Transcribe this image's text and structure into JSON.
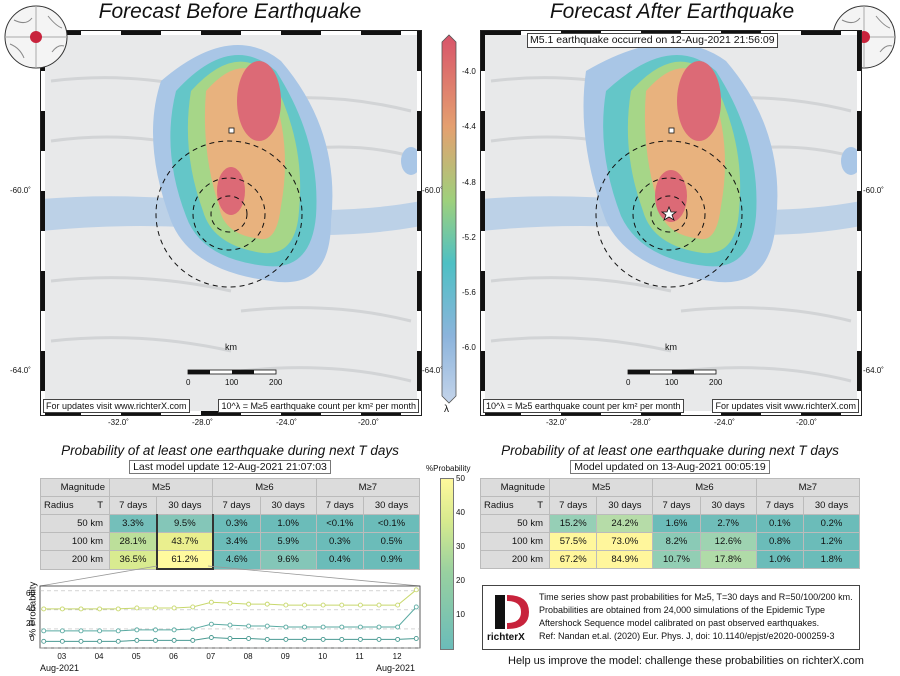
{
  "left_panel": {
    "title": "Forecast Before Earthquake",
    "footer_left": "For updates visit www.richterX.com",
    "footer_right": "10^λ = M≥5 earthquake count per km² per month",
    "scale_unit": "km",
    "scale_ticks": [
      "0",
      "100",
      "200"
    ],
    "lon_ticks": [
      "-32.0˚",
      "-28.0˚",
      "-24.0˚",
      "-20.0˚"
    ],
    "lat_ticks_right": [
      "-60.0˚",
      "-64.0˚"
    ],
    "lat_ticks_left": [
      "-60.0˚",
      "-64.0˚"
    ]
  },
  "right_panel": {
    "title": "Forecast After Earthquake",
    "event_label": "M5.1 earthquake occurred on 12-Aug-2021 21:56:09",
    "footer_left": "10^λ = M≥5 earthquake count per km² per month",
    "footer_right": "For updates visit www.richterX.com",
    "scale_unit": "km",
    "scale_ticks": [
      "0",
      "100",
      "200"
    ],
    "lon_ticks": [
      "-32.0˚",
      "-28.0˚",
      "-24.0˚",
      "-20.0˚"
    ],
    "lat_ticks_right": [
      "-60.0˚",
      "-64.0˚"
    ]
  },
  "colorbar": {
    "ticks": [
      "-4.0",
      "-4.4",
      "-4.8",
      "-5.2",
      "-5.6",
      "-6.0"
    ],
    "symbol": "λ",
    "colors": [
      "#d8546a",
      "#e4a070",
      "#9ed07c",
      "#4ec0c4",
      "#8cb4dc"
    ]
  },
  "prob_colorbar": {
    "title": "%Probability",
    "ticks": [
      "50",
      "40",
      "30",
      "20",
      "10"
    ]
  },
  "table_left": {
    "title": "Probability of at least one earthquake during next T days",
    "update": "Last model update 12-Aug-2021 21:07:03",
    "header_magnitude": "Magnitude",
    "header_radius": "Radius",
    "header_t": "T",
    "magnitudes": [
      "M≥5",
      "M≥6",
      "M≥7"
    ],
    "periods": [
      "7 days",
      "30 days",
      "7 days",
      "30 days",
      "7 days",
      "30 days"
    ],
    "rows": [
      {
        "radius": "50 km",
        "cells": [
          "3.3%",
          "9.5%",
          "0.3%",
          "1.0%",
          "<0.1%",
          "<0.1%"
        ]
      },
      {
        "radius": "100 km",
        "cells": [
          "28.1%",
          "43.7%",
          "3.4%",
          "5.9%",
          "0.3%",
          "0.5%"
        ]
      },
      {
        "radius": "200 km",
        "cells": [
          "36.5%",
          "61.2%",
          "4.6%",
          "9.6%",
          "0.4%",
          "0.9%"
        ]
      }
    ],
    "colors": [
      [
        "#74bfba",
        "#84c6b8",
        "#6bbcb9",
        "#6bbcb9",
        "#6bbcb9",
        "#6bbcb9"
      ],
      [
        "#bcdf9a",
        "#eaef8e",
        "#6bbcb9",
        "#72bfba",
        "#6bbcb9",
        "#6bbcb9"
      ],
      [
        "#d9eb90",
        "#fffa9e",
        "#6fbdb9",
        "#84c6b8",
        "#6bbcb9",
        "#6bbcb9"
      ]
    ]
  },
  "table_right": {
    "title": "Probability of at least one earthquake during next T days",
    "update": "Model updated on 13-Aug-2021 00:05:19",
    "header_magnitude": "Magnitude",
    "header_radius": "Radius",
    "header_t": "T",
    "magnitudes": [
      "M≥5",
      "M≥6",
      "M≥7"
    ],
    "periods": [
      "7 days",
      "30 days",
      "7 days",
      "30 days",
      "7 days",
      "30 days"
    ],
    "rows": [
      {
        "radius": "50 km",
        "cells": [
          "15.2%",
          "24.2%",
          "1.6%",
          "2.7%",
          "0.1%",
          "0.2%"
        ]
      },
      {
        "radius": "100 km",
        "cells": [
          "57.5%",
          "73.0%",
          "8.2%",
          "12.6%",
          "0.8%",
          "1.2%"
        ]
      },
      {
        "radius": "200 km",
        "cells": [
          "67.2%",
          "84.9%",
          "10.7%",
          "17.8%",
          "1.0%",
          "1.8%"
        ]
      }
    ],
    "colors": [
      [
        "#96cfb6",
        "#b6dca8",
        "#6bbcb9",
        "#6fbdb9",
        "#6bbcb9",
        "#6bbcb9"
      ],
      [
        "#fff79c",
        "#fff69c",
        "#8acab6",
        "#9ed3b1",
        "#6bbcb9",
        "#6bbcb9"
      ],
      [
        "#fff69c",
        "#fff69c",
        "#92ceb4",
        "#b0dba8",
        "#6bbcb9",
        "#6bbcb9"
      ]
    ]
  },
  "timeseries": {
    "ylabel": "% Probability",
    "yticks": [
      "60",
      "40",
      "20",
      "0"
    ],
    "xticks": [
      "03",
      "04",
      "05",
      "06",
      "07",
      "08",
      "09",
      "10",
      "11",
      "12"
    ],
    "x_left_label": "Aug-2021",
    "x_right_label": "Aug-2021"
  },
  "chart_data": {
    "type": "line",
    "ylabel": "% Probability",
    "ylim": [
      0,
      65
    ],
    "x": [
      2.5,
      3.0,
      3.5,
      4.0,
      4.5,
      5.0,
      5.5,
      6.0,
      6.5,
      7.0,
      7.5,
      8.0,
      8.5,
      9.0,
      9.5,
      10.0,
      10.5,
      11.0,
      11.5,
      12.0,
      12.5
    ],
    "series": [
      {
        "values": [
          41,
          41,
          41,
          41,
          41,
          42,
          42,
          42,
          43,
          48,
          47,
          46,
          46,
          45,
          45,
          45,
          45,
          45,
          45,
          45,
          61
        ]
      },
      {
        "values": [
          18,
          18,
          18,
          18,
          18,
          19,
          19,
          19,
          20,
          25,
          24,
          23,
          23,
          22,
          22,
          22,
          22,
          22,
          22,
          22,
          43
        ]
      },
      {
        "values": [
          7,
          7,
          7,
          7,
          7,
          8,
          8,
          8,
          8,
          11,
          10,
          10,
          9,
          9,
          9,
          9,
          9,
          9,
          9,
          9,
          10
        ]
      }
    ],
    "colors": [
      "#c8d86c",
      "#5aaaa2",
      "#4a9a92"
    ]
  },
  "legend": {
    "logo_text": "richterX",
    "lines": [
      "Time series show past probabilities for M≥5, T=30 days and R=50/100/200 km.",
      "Probabilities are obtained from 24,000 simulations of the Epidemic Type",
      "Aftershock Sequence model calibrated on past observed earthquakes.",
      "Ref: Nandan et.al. (2020) Eur. Phys. J, doi: 10.1140/epjst/e2020-000259-3"
    ]
  },
  "help_text": "Help us improve the model: challenge these probabilities on richterX.com"
}
